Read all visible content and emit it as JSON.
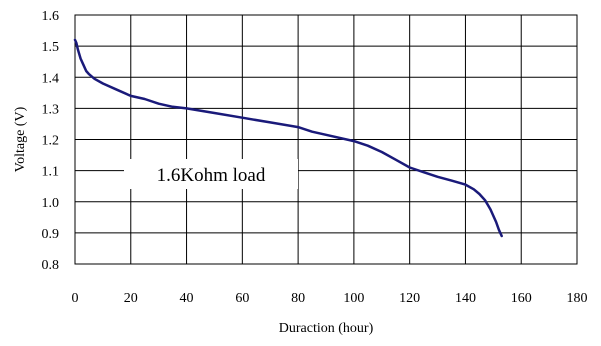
{
  "chart_data": {
    "type": "line",
    "title": "",
    "xlabel": "Duraction (hour)",
    "ylabel": "Voltage (V)",
    "xlim": [
      0,
      180
    ],
    "ylim": [
      0.8,
      1.6
    ],
    "x_ticks": [
      "0",
      "20",
      "40",
      "60",
      "80",
      "100",
      "120",
      "140",
      "160",
      "180"
    ],
    "y_ticks": [
      "0.8",
      "0.9",
      "1.0",
      "1.1",
      "1.2",
      "1.3",
      "1.4",
      "1.5",
      "1.6"
    ],
    "x_tick_values": [
      0,
      20,
      40,
      60,
      80,
      100,
      120,
      140,
      160,
      180
    ],
    "y_tick_values": [
      0.8,
      0.9,
      1.0,
      1.1,
      1.2,
      1.3,
      1.4,
      1.5,
      1.6
    ],
    "grid": true,
    "annotation": "1.6Kohm load",
    "series": [
      {
        "color": "#1a1a7a",
        "x": [
          0,
          0.5,
          1,
          2,
          3,
          4,
          5,
          7,
          10,
          15,
          20,
          25,
          30,
          35,
          40,
          50,
          60,
          70,
          80,
          85,
          90,
          100,
          105,
          110,
          115,
          120,
          125,
          130,
          135,
          140,
          143,
          145,
          147,
          148,
          149,
          150,
          151,
          152,
          153
        ],
        "y": [
          1.52,
          1.51,
          1.49,
          1.46,
          1.44,
          1.42,
          1.41,
          1.395,
          1.38,
          1.36,
          1.34,
          1.33,
          1.315,
          1.305,
          1.3,
          1.285,
          1.27,
          1.255,
          1.24,
          1.225,
          1.215,
          1.195,
          1.18,
          1.16,
          1.135,
          1.11,
          1.095,
          1.08,
          1.068,
          1.055,
          1.04,
          1.025,
          1.005,
          0.99,
          0.975,
          0.955,
          0.935,
          0.91,
          0.89
        ]
      }
    ]
  }
}
